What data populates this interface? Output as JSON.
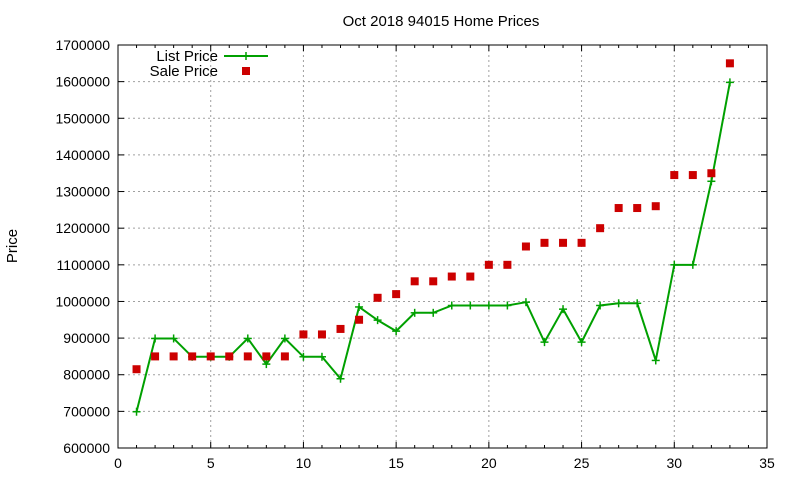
{
  "chart_data": {
    "type": "line",
    "title": "Oct 2018 94015 Home Prices",
    "xlabel": "",
    "ylabel": "Price",
    "xlim": [
      0,
      35
    ],
    "ylim": [
      600000,
      1700000
    ],
    "xticks": [
      0,
      5,
      10,
      15,
      20,
      25,
      30,
      35
    ],
    "yticks": [
      600000,
      700000,
      800000,
      900000,
      1000000,
      1100000,
      1200000,
      1300000,
      1400000,
      1500000,
      1600000,
      1700000
    ],
    "grid": true,
    "legend_position": "top-left",
    "series": [
      {
        "name": "List Price",
        "style": "line-with-plus",
        "color": "#00a000",
        "x": [
          1,
          2,
          3,
          4,
          5,
          6,
          7,
          8,
          9,
          10,
          11,
          12,
          13,
          14,
          15,
          16,
          17,
          18,
          19,
          20,
          21,
          22,
          23,
          24,
          25,
          26,
          27,
          28,
          29,
          30,
          31,
          32,
          33
        ],
        "values": [
          699000,
          899000,
          899000,
          849000,
          849000,
          849000,
          899000,
          829000,
          899000,
          849000,
          849000,
          789000,
          985000,
          949000,
          919000,
          969000,
          969000,
          989000,
          989000,
          989000,
          989000,
          998000,
          889000,
          979000,
          889000,
          989000,
          995000,
          995000,
          839000,
          1100000,
          1100000,
          1328000,
          1598000
        ]
      },
      {
        "name": "Sale Price",
        "style": "square-markers",
        "color": "#cc0000",
        "x": [
          1,
          2,
          3,
          4,
          5,
          6,
          7,
          8,
          9,
          10,
          11,
          12,
          13,
          14,
          15,
          16,
          17,
          18,
          19,
          20,
          21,
          22,
          23,
          24,
          25,
          26,
          27,
          28,
          29,
          30,
          31,
          32,
          33
        ],
        "values": [
          815000,
          850000,
          850000,
          850000,
          850000,
          850000,
          850000,
          850000,
          850000,
          910000,
          910000,
          925000,
          950000,
          1010000,
          1020000,
          1055000,
          1055000,
          1068000,
          1068000,
          1100000,
          1100000,
          1150000,
          1160000,
          1160000,
          1160000,
          1200000,
          1255000,
          1255000,
          1260000,
          1345000,
          1345000,
          1350000,
          1650000
        ]
      }
    ]
  }
}
